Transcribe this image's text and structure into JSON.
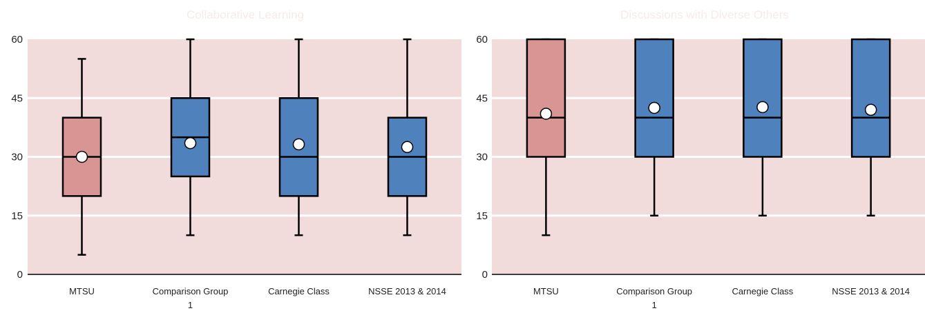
{
  "colors": {
    "plot_background": "#f2dcdb",
    "gridline": "#ffffff",
    "highlight_box": "#d99594",
    "comparison_box": "#4f81bd",
    "outline": "#000000",
    "mean_marker": "#ffffff"
  },
  "chart_data": [
    {
      "type": "box",
      "title": "Collaborative Learning",
      "ylim": [
        0,
        60
      ],
      "yticks": [
        "0",
        "15",
        "30",
        "45",
        "60"
      ],
      "grid": true,
      "categories": [
        {
          "lines": [
            "MTSU"
          ],
          "whisker_low": 5,
          "q1": 20,
          "median": 30,
          "q3": 40,
          "whisker_high": 55,
          "mean": 30,
          "highlight": true
        },
        {
          "lines": [
            "Comparison Group",
            "1"
          ],
          "whisker_low": 10,
          "q1": 25,
          "median": 35,
          "q3": 45,
          "whisker_high": 60,
          "mean": 33.5,
          "highlight": false
        },
        {
          "lines": [
            "Carnegie Class"
          ],
          "whisker_low": 10,
          "q1": 20,
          "median": 30,
          "q3": 45,
          "whisker_high": 60,
          "mean": 33.2,
          "highlight": false
        },
        {
          "lines": [
            "NSSE 2013 & 2014"
          ],
          "whisker_low": 10,
          "q1": 20,
          "median": 30,
          "q3": 40,
          "whisker_high": 60,
          "mean": 32.5,
          "highlight": false
        }
      ]
    },
    {
      "type": "box",
      "title": "Discussions with Diverse Others",
      "ylim": [
        0,
        60
      ],
      "yticks": [
        "0",
        "15",
        "30",
        "45",
        "60"
      ],
      "grid": true,
      "categories": [
        {
          "lines": [
            "MTSU"
          ],
          "whisker_low": 10,
          "q1": 30,
          "median": 40,
          "q3": 60,
          "whisker_high": 60,
          "mean": 41,
          "highlight": true
        },
        {
          "lines": [
            "Comparison Group",
            "1"
          ],
          "whisker_low": 15,
          "q1": 30,
          "median": 40,
          "q3": 60,
          "whisker_high": 60,
          "mean": 42.5,
          "highlight": false
        },
        {
          "lines": [
            "Carnegie Class"
          ],
          "whisker_low": 15,
          "q1": 30,
          "median": 40,
          "q3": 60,
          "whisker_high": 60,
          "mean": 42.7,
          "highlight": false
        },
        {
          "lines": [
            "NSSE 2013 & 2014"
          ],
          "whisker_low": 15,
          "q1": 30,
          "median": 40,
          "q3": 60,
          "whisker_high": 60,
          "mean": 42,
          "highlight": false
        }
      ]
    }
  ]
}
